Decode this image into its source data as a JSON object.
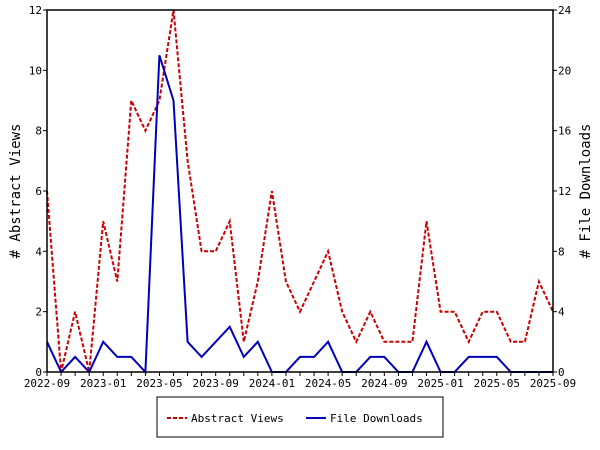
{
  "chart_data": {
    "type": "line",
    "x": [
      "2022-09",
      "2022-10",
      "2022-11",
      "2022-12",
      "2023-01",
      "2023-02",
      "2023-03",
      "2023-04",
      "2023-05",
      "2023-06",
      "2023-07",
      "2023-08",
      "2023-09",
      "2023-10",
      "2023-11",
      "2023-12",
      "2024-01",
      "2024-02",
      "2024-03",
      "2024-04",
      "2024-05",
      "2024-06",
      "2024-07",
      "2024-08",
      "2024-09",
      "2024-10",
      "2024-11",
      "2024-12",
      "2025-01",
      "2025-02",
      "2025-03",
      "2025-04",
      "2025-05",
      "2025-06",
      "2025-07",
      "2025-08",
      "2025-09"
    ],
    "x_tick_labels": [
      "2022-09",
      "2023-01",
      "2023-05",
      "2023-09",
      "2024-01",
      "2024-05",
      "2024-09",
      "2025-01",
      "2025-05",
      "2025-09"
    ],
    "series": [
      {
        "name": "Abstract Views",
        "axis": "left",
        "color": "#cc0000",
        "style": "dashed",
        "values": [
          6,
          0,
          2,
          0,
          5,
          3,
          9,
          8,
          9,
          12,
          7,
          4,
          4,
          5,
          1,
          3,
          6,
          3,
          2,
          3,
          4,
          2,
          1,
          2,
          1,
          1,
          1,
          5,
          2,
          2,
          1,
          2,
          2,
          1,
          1,
          3,
          2
        ]
      },
      {
        "name": "File Downloads",
        "axis": "right",
        "color": "#0000bb",
        "style": "solid",
        "values": [
          2,
          0,
          1,
          0,
          2,
          1,
          1,
          0,
          21,
          18,
          2,
          1,
          2,
          3,
          1,
          2,
          0,
          0,
          1,
          1,
          2,
          0,
          0,
          1,
          1,
          0,
          0,
          2,
          0,
          0,
          1,
          1,
          1,
          0,
          0,
          0,
          0
        ]
      }
    ],
    "ylabel": "# Abstract Views",
    "y2label": "# File Downloads",
    "ylim": [
      0,
      12
    ],
    "y2lim": [
      0,
      24
    ],
    "y_ticks": [
      "0",
      "2",
      "4",
      "6",
      "8",
      "10",
      "12"
    ],
    "y2_ticks": [
      "0",
      "4",
      "8",
      "12",
      "16",
      "20",
      "24"
    ],
    "legend_position": "bottom-center",
    "grid": false
  }
}
